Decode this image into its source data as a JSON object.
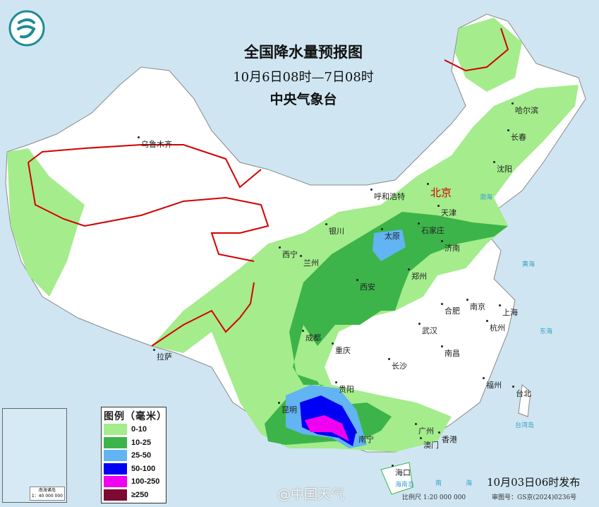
{
  "header": {
    "title": "全国降水量预报图",
    "period": "10月6日08时—7日08时",
    "issuer": "中央气象台"
  },
  "legend": {
    "title": "图例（毫米）",
    "items": [
      {
        "label": "0-10",
        "color": "#a4ec8c"
      },
      {
        "label": "10-25",
        "color": "#3cb44a"
      },
      {
        "label": "25-50",
        "color": "#62b4f2"
      },
      {
        "label": "50-100",
        "color": "#0000f5"
      },
      {
        "label": "100-250",
        "color": "#f000f0"
      },
      {
        "label": "≥250",
        "color": "#7d0a32"
      }
    ]
  },
  "cities": [
    "乌鲁木齐",
    "哈尔滨",
    "长春",
    "沈阳",
    "呼和浩特",
    "北京",
    "天津",
    "石家庄",
    "太原",
    "济南",
    "银川",
    "西宁",
    "兰州",
    "郑州",
    "西安",
    "南京",
    "合肥",
    "上海",
    "杭州",
    "武汉",
    "成都",
    "重庆",
    "长沙",
    "南昌",
    "拉萨",
    "贵阳",
    "昆明",
    "南宁",
    "广州",
    "澳门",
    "香港",
    "福州",
    "台北",
    "海口"
  ],
  "seas": [
    "渤海",
    "黄海",
    "东海",
    "台湾岛",
    "海南岛",
    "南",
    "海"
  ],
  "inset": {
    "label": "南海诸岛",
    "scale": "1：40 000 000"
  },
  "footer": {
    "issued": "10月03日06时发布",
    "scale": "比例尺 1:20 000 000",
    "review": "审图号：GS京(2024)0236号",
    "watermark": "@中国天气"
  },
  "colors": {
    "land": "#ffffff",
    "sea": "#cfe6f2",
    "border": "#d40000"
  }
}
